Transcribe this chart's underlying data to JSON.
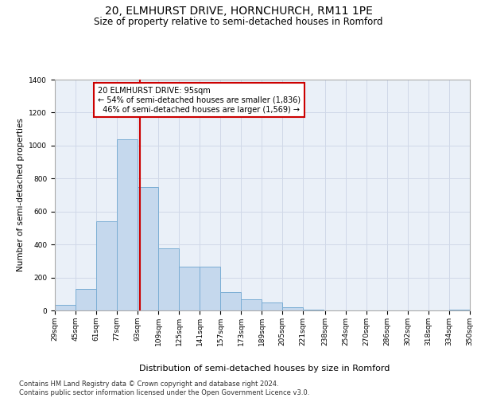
{
  "title": "20, ELMHURST DRIVE, HORNCHURCH, RM11 1PE",
  "subtitle": "Size of property relative to semi-detached houses in Romford",
  "xlabel": "Distribution of semi-detached houses by size in Romford",
  "ylabel": "Number of semi-detached properties",
  "footnote": "Contains HM Land Registry data © Crown copyright and database right 2024.\nContains public sector information licensed under the Open Government Licence v3.0.",
  "bin_labels": [
    "29sqm",
    "45sqm",
    "61sqm",
    "77sqm",
    "93sqm",
    "109sqm",
    "125sqm",
    "141sqm",
    "157sqm",
    "173sqm",
    "189sqm",
    "205sqm",
    "221sqm",
    "238sqm",
    "254sqm",
    "270sqm",
    "286sqm",
    "302sqm",
    "318sqm",
    "334sqm",
    "350sqm"
  ],
  "bin_edges": [
    29,
    45,
    61,
    77,
    93,
    109,
    125,
    141,
    157,
    173,
    189,
    205,
    221,
    238,
    254,
    270,
    286,
    302,
    318,
    334,
    350
  ],
  "bar_values": [
    35,
    130,
    540,
    1040,
    750,
    375,
    265,
    265,
    110,
    70,
    50,
    20,
    5,
    0,
    0,
    0,
    0,
    0,
    0,
    5
  ],
  "bar_color": "#c5d8ed",
  "bar_edge_color": "#7aadd4",
  "property_size": 95,
  "pct_smaller": 54,
  "pct_larger": 46,
  "n_smaller": 1836,
  "n_larger": 1569,
  "vline_color": "#cc0000",
  "annotation_box_color": "#ffffff",
  "annotation_box_edge": "#cc0000",
  "ylim": [
    0,
    1400
  ],
  "yticks": [
    0,
    200,
    400,
    600,
    800,
    1000,
    1200,
    1400
  ],
  "grid_color": "#d0d8e8",
  "background_color": "#eaf0f8",
  "title_fontsize": 10,
  "subtitle_fontsize": 8.5,
  "axis_label_fontsize": 7.5,
  "tick_fontsize": 6.5,
  "annotation_fontsize": 7,
  "footnote_fontsize": 6
}
